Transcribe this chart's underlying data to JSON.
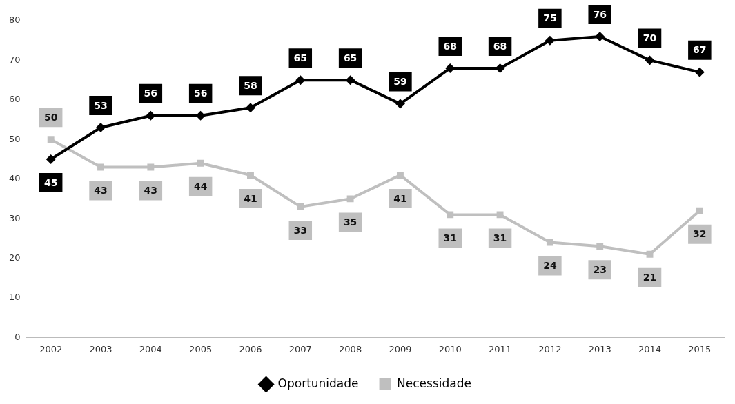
{
  "chart_data": {
    "type": "line",
    "categories": [
      "2002",
      "2003",
      "2004",
      "2005",
      "2006",
      "2007",
      "2008",
      "2009",
      "2010",
      "2011",
      "2012",
      "2013",
      "2014",
      "2015"
    ],
    "series": [
      {
        "name": "Oportunidade",
        "color": "#000000",
        "marker": "diamond",
        "values": [
          45,
          53,
          56,
          56,
          58,
          65,
          65,
          59,
          68,
          68,
          75,
          76,
          70,
          67
        ]
      },
      {
        "name": "Necessidade",
        "color": "#bfbfbf",
        "marker": "square",
        "values": [
          50,
          43,
          43,
          44,
          41,
          33,
          35,
          41,
          31,
          31,
          24,
          23,
          21,
          32
        ]
      }
    ],
    "ylim": [
      0,
      80
    ],
    "yticks": [
      0,
      10,
      20,
      30,
      40,
      50,
      60,
      70,
      80
    ],
    "grid": false,
    "legend": "bottom",
    "data_labels": true,
    "line_style": "solid"
  }
}
